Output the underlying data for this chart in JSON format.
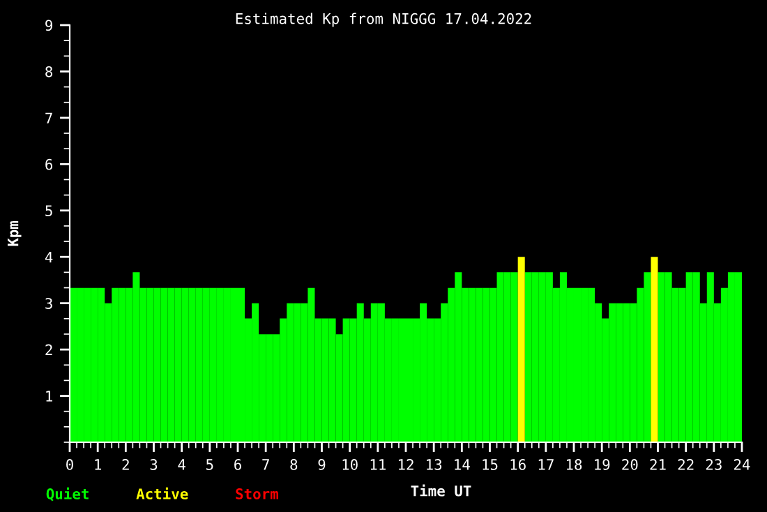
{
  "chart_data": {
    "type": "bar",
    "title": "Estimated Kp from NIGGG 17.04.2022",
    "xlabel": "Time UT",
    "ylabel": "Kpm",
    "x": [
      0.125,
      0.375,
      0.625,
      0.875,
      1.125,
      1.375,
      1.625,
      1.875,
      2.125,
      2.375,
      2.625,
      2.875,
      3.125,
      3.375,
      3.625,
      3.875,
      4.125,
      4.375,
      4.625,
      4.875,
      5.125,
      5.375,
      5.625,
      5.875,
      6.125,
      6.375,
      6.625,
      6.875,
      7.125,
      7.375,
      7.625,
      7.875,
      8.125,
      8.375,
      8.625,
      8.875,
      9.125,
      9.375,
      9.625,
      9.875,
      10.125,
      10.375,
      10.625,
      10.875,
      11.125,
      11.375,
      11.625,
      11.875,
      12.125,
      12.375,
      12.625,
      12.875,
      13.125,
      13.375,
      13.625,
      13.875,
      14.125,
      14.375,
      14.625,
      14.875,
      15.125,
      15.375,
      15.625,
      15.875,
      16.125,
      16.375,
      16.625,
      16.875,
      17.125,
      17.375,
      17.625,
      17.875,
      18.125,
      18.375,
      18.625,
      18.875,
      19.125,
      19.375,
      19.625,
      19.875,
      20.125,
      20.375,
      20.625,
      20.875,
      21.125,
      21.375,
      21.625,
      21.875,
      22.125,
      22.375,
      22.625,
      22.875,
      23.125,
      23.375,
      23.625,
      23.875
    ],
    "series": [
      {
        "name": "Quiet",
        "color": "#00ff00",
        "values": [
          3.33,
          3.33,
          3.33,
          3.33,
          3.33,
          3.0,
          3.33,
          3.33,
          3.33,
          3.67,
          3.33,
          3.33,
          3.33,
          3.33,
          3.33,
          3.33,
          3.33,
          3.33,
          3.33,
          3.33,
          3.33,
          3.33,
          3.33,
          3.33,
          3.33,
          2.67,
          3.0,
          2.33,
          2.33,
          2.33,
          2.67,
          3.0,
          3.0,
          3.0,
          3.33,
          2.67,
          2.67,
          2.67,
          2.33,
          2.67,
          2.67,
          3.0,
          2.67,
          3.0,
          3.0,
          2.67,
          2.67,
          2.67,
          2.67,
          2.67,
          3.0,
          2.67,
          2.67,
          3.0,
          3.33,
          3.67,
          3.33,
          3.33,
          3.33,
          3.33,
          3.33,
          3.67,
          3.67,
          3.67,
          null,
          3.67,
          3.67,
          3.67,
          3.67,
          3.33,
          3.67,
          3.33,
          3.33,
          3.33,
          3.33,
          3.0,
          2.67,
          3.0,
          3.0,
          3.0,
          3.0,
          3.33,
          3.67,
          null,
          3.67,
          3.67,
          3.33,
          3.33,
          3.67,
          3.67,
          3.0,
          3.67,
          3.0,
          3.33,
          3.67,
          3.67
        ]
      },
      {
        "name": "Active",
        "color": "#ffff00",
        "values": [
          null,
          null,
          null,
          null,
          null,
          null,
          null,
          null,
          null,
          null,
          null,
          null,
          null,
          null,
          null,
          null,
          null,
          null,
          null,
          null,
          null,
          null,
          null,
          null,
          null,
          null,
          null,
          null,
          null,
          null,
          null,
          null,
          null,
          null,
          null,
          null,
          null,
          null,
          null,
          null,
          null,
          null,
          null,
          null,
          null,
          null,
          null,
          null,
          null,
          null,
          null,
          null,
          null,
          null,
          null,
          null,
          null,
          null,
          null,
          null,
          null,
          null,
          null,
          null,
          4,
          null,
          null,
          null,
          null,
          null,
          null,
          null,
          null,
          null,
          null,
          null,
          null,
          null,
          null,
          null,
          null,
          null,
          null,
          4,
          null,
          null,
          null,
          null,
          null,
          null,
          null,
          null,
          null,
          null,
          null,
          null
        ]
      },
      {
        "name": "Storm",
        "color": "#ff0000",
        "values": [
          null,
          null,
          null,
          null,
          null,
          null,
          null,
          null,
          null,
          null,
          null,
          null,
          null,
          null,
          null,
          null,
          null,
          null,
          null,
          null,
          null,
          null,
          null,
          null,
          null,
          null,
          null,
          null,
          null,
          null,
          null,
          null,
          null,
          null,
          null,
          null,
          null,
          null,
          null,
          null,
          null,
          null,
          null,
          null,
          null,
          null,
          null,
          null,
          null,
          null,
          null,
          null,
          null,
          null,
          null,
          null,
          null,
          null,
          null,
          null,
          null,
          null,
          null,
          null,
          null,
          null,
          null,
          null,
          null,
          null,
          null,
          null,
          null,
          null,
          null,
          null,
          null,
          null,
          null,
          null,
          null,
          null,
          null,
          null,
          null,
          null,
          null,
          null,
          null,
          null,
          null,
          null,
          null,
          null,
          null,
          null
        ]
      }
    ],
    "xlim": [
      0,
      24
    ],
    "xticks": [
      0,
      1,
      2,
      3,
      4,
      5,
      6,
      7,
      8,
      9,
      10,
      11,
      12,
      13,
      14,
      15,
      16,
      17,
      18,
      19,
      20,
      21,
      22,
      23,
      24
    ],
    "ylim": [
      0,
      9
    ],
    "yticks": [
      1,
      2,
      3,
      4,
      5,
      6,
      7,
      8,
      9
    ],
    "legend": "bottom left",
    "grid": false
  }
}
